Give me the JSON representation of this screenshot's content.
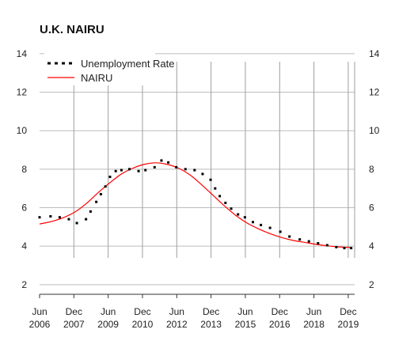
{
  "chart_data": {
    "type": "line",
    "title": "U.K. NAIRU",
    "xlabel": "",
    "ylabel": "",
    "ylim": [
      1.5,
      14.2
    ],
    "y_ticks": [
      2,
      4,
      6,
      8,
      10,
      12,
      14
    ],
    "x_ticks": [
      {
        "t": 2006.42,
        "top": "Jun",
        "bottom": "2006"
      },
      {
        "t": 2007.92,
        "top": "Dec",
        "bottom": "2007"
      },
      {
        "t": 2009.42,
        "top": "Jun",
        "bottom": "2009"
      },
      {
        "t": 2010.92,
        "top": "Dec",
        "bottom": "2010"
      },
      {
        "t": 2012.42,
        "top": "Jun",
        "bottom": "2012"
      },
      {
        "t": 2013.92,
        "top": "Dec",
        "bottom": "2013"
      },
      {
        "t": 2015.42,
        "top": "Jun",
        "bottom": "2015"
      },
      {
        "t": 2016.92,
        "top": "Dec",
        "bottom": "2016"
      },
      {
        "t": 2018.42,
        "top": "Jun",
        "bottom": "2018"
      },
      {
        "t": 2019.92,
        "top": "Dec",
        "bottom": "2019"
      }
    ],
    "legend_position": "top-left",
    "grid": true,
    "series": [
      {
        "name": "Unemployment Rate",
        "style": "dotted",
        "color": "#000000",
        "x": [
          2006.42,
          2006.9,
          2007.3,
          2007.7,
          2008.05,
          2008.45,
          2008.65,
          2008.9,
          2009.1,
          2009.3,
          2009.5,
          2009.75,
          2010.0,
          2010.35,
          2010.75,
          2011.05,
          2011.45,
          2011.75,
          2012.05,
          2012.4,
          2012.8,
          2013.2,
          2013.55,
          2013.9,
          2014.1,
          2014.3,
          2014.55,
          2014.8,
          2015.1,
          2015.4,
          2015.75,
          2016.1,
          2016.5,
          2016.95,
          2017.35,
          2017.8,
          2018.2,
          2018.6,
          2019.0,
          2019.4,
          2019.75,
          2020.05
        ],
        "values": [
          5.5,
          5.55,
          5.5,
          5.4,
          5.2,
          5.4,
          5.8,
          6.3,
          6.7,
          7.1,
          7.6,
          7.9,
          7.95,
          8.0,
          7.9,
          7.95,
          8.1,
          8.45,
          8.35,
          8.1,
          8.0,
          7.95,
          7.75,
          7.45,
          7.0,
          6.6,
          6.25,
          5.95,
          5.65,
          5.5,
          5.25,
          5.1,
          4.95,
          4.75,
          4.5,
          4.35,
          4.25,
          4.15,
          4.05,
          3.95,
          3.9,
          3.9
        ]
      },
      {
        "name": "NAIRU",
        "style": "solid",
        "color": "#ff0000",
        "x": [
          2006.42,
          2007.0,
          2007.5,
          2008.0,
          2008.5,
          2009.0,
          2009.5,
          2010.0,
          2010.5,
          2011.0,
          2011.5,
          2012.0,
          2012.5,
          2013.0,
          2013.5,
          2014.0,
          2014.5,
          2015.0,
          2015.5,
          2016.0,
          2016.5,
          2017.0,
          2017.5,
          2018.0,
          2018.5,
          2019.0,
          2019.5,
          2020.05
        ],
        "values": [
          5.15,
          5.3,
          5.5,
          5.8,
          6.25,
          6.8,
          7.3,
          7.75,
          8.05,
          8.25,
          8.33,
          8.25,
          8.05,
          7.7,
          7.2,
          6.65,
          6.1,
          5.6,
          5.2,
          4.9,
          4.65,
          4.45,
          4.3,
          4.2,
          4.1,
          4.02,
          3.96,
          3.93
        ]
      }
    ]
  }
}
